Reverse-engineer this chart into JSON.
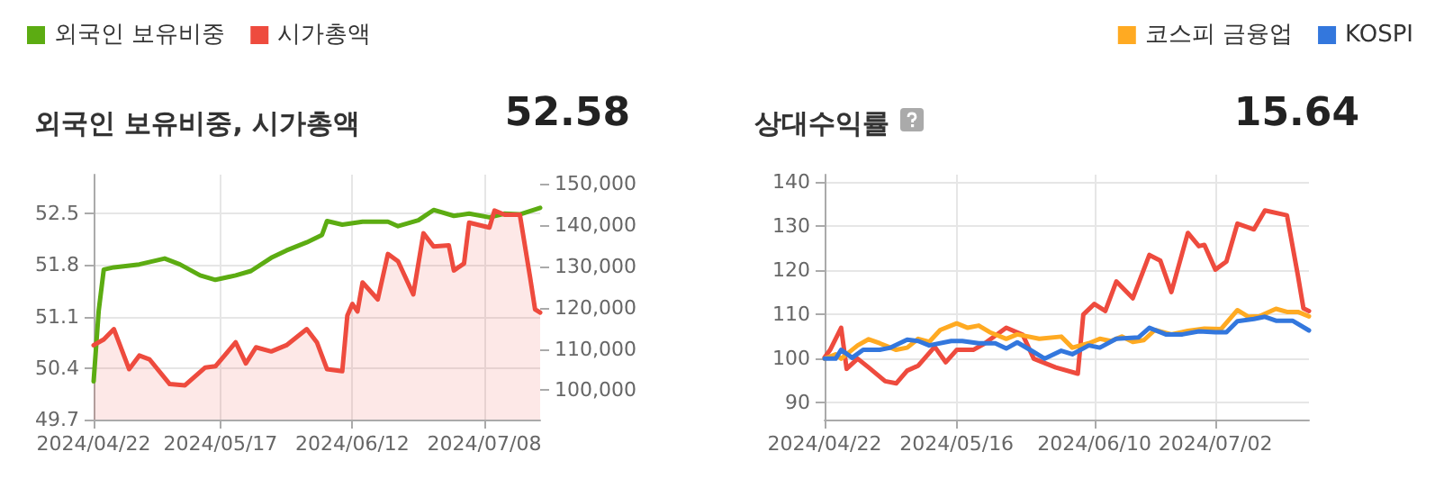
{
  "chart_data": [
    {
      "type": "line",
      "title": "외국인 보유비중, 시가총액",
      "annotations": [
        "52.58"
      ],
      "xlim": [
        "2024-04-22",
        "2024-07-19"
      ],
      "xticks": [
        {
          "value": "2024-04-22",
          "label": "2024/04/22"
        },
        {
          "value": "2024-05-17",
          "label": "2024/05/17"
        },
        {
          "value": "2024-06-12",
          "label": "2024/06/12"
        },
        {
          "value": "2024-07-08",
          "label": "2024/07/08"
        }
      ],
      "ylim": [
        49.7,
        53.03
      ],
      "yticks": [
        49.7,
        50.4,
        51.1,
        51.8,
        52.5
      ],
      "y2lim": [
        92900,
        152200
      ],
      "y2ticks": [
        {
          "value": 100000,
          "label": "100,000"
        },
        {
          "value": 110000,
          "label": "110,000"
        },
        {
          "value": 120000,
          "label": "120,000"
        },
        {
          "value": 130000,
          "label": "130,000"
        },
        {
          "value": 140000,
          "label": "140,000"
        },
        {
          "value": 150000,
          "label": "150,000"
        }
      ],
      "series": [
        {
          "name": "외국인 보유비중",
          "color": "#5cac12",
          "x": [
            "2024-04-22",
            "2024-04-23",
            "2024-04-24",
            "2024-04-26",
            "2024-05-01",
            "2024-05-06",
            "2024-05-09",
            "2024-05-13",
            "2024-05-16",
            "2024-05-20",
            "2024-05-23",
            "2024-05-27",
            "2024-05-30",
            "2024-06-03",
            "2024-06-06",
            "2024-06-07",
            "2024-06-10",
            "2024-06-14",
            "2024-06-19",
            "2024-06-21",
            "2024-06-25",
            "2024-06-28",
            "2024-07-02",
            "2024-07-05",
            "2024-07-09",
            "2024-07-12",
            "2024-07-15",
            "2024-07-19"
          ],
          "values": [
            50.22,
            51.18,
            51.74,
            51.77,
            51.81,
            51.89,
            51.81,
            51.66,
            51.6,
            51.66,
            51.72,
            51.9,
            52.0,
            52.11,
            52.21,
            52.4,
            52.35,
            52.39,
            52.39,
            52.33,
            52.41,
            52.55,
            52.47,
            52.5,
            52.45,
            52.5,
            52.49,
            52.58
          ]
        },
        {
          "name": "시가총액",
          "type": "area",
          "axis": "y2",
          "color": "#ee4b3e",
          "x": [
            "2024-04-22",
            "2024-04-24",
            "2024-04-26",
            "2024-04-29",
            "2024-05-01",
            "2024-05-03",
            "2024-05-07",
            "2024-05-10",
            "2024-05-14",
            "2024-05-16",
            "2024-05-20",
            "2024-05-22",
            "2024-05-24",
            "2024-05-27",
            "2024-05-30",
            "2024-06-03",
            "2024-06-05",
            "2024-06-07",
            "2024-06-10",
            "2024-06-11",
            "2024-06-12",
            "2024-06-13",
            "2024-06-14",
            "2024-06-17",
            "2024-06-19",
            "2024-06-21",
            "2024-06-24",
            "2024-06-26",
            "2024-06-28",
            "2024-07-01",
            "2024-07-02",
            "2024-07-04",
            "2024-07-05",
            "2024-07-09",
            "2024-07-10",
            "2024-07-12",
            "2024-07-15",
            "2024-07-17",
            "2024-07-18",
            "2024-07-19"
          ],
          "values": [
            110900,
            112300,
            114800,
            105100,
            108400,
            107500,
            101500,
            101200,
            105500,
            105800,
            111600,
            106500,
            110400,
            109400,
            110900,
            114800,
            111600,
            105100,
            104600,
            118100,
            120900,
            119100,
            126100,
            122000,
            133000,
            131200,
            123200,
            138000,
            134800,
            135100,
            129000,
            130700,
            140600,
            139400,
            143500,
            142500,
            142500,
            127500,
            119600,
            118800
          ]
        }
      ],
      "grid": true,
      "legend": "top left",
      "marker": "none",
      "line_style": "solid"
    },
    {
      "type": "line",
      "title": "상대수익률",
      "annotations": [
        "15.64"
      ],
      "xlim": [
        "2024-04-22",
        "2024-07-19"
      ],
      "xticks": [
        {
          "value": "2024-04-22",
          "label": "2024/04/22"
        },
        {
          "value": "2024-05-16",
          "label": "2024/05/16"
        },
        {
          "value": "2024-06-10",
          "label": "2024/06/10"
        },
        {
          "value": "2024-07-02",
          "label": "2024/07/02"
        }
      ],
      "ylim": [
        86.2,
        141.7
      ],
      "yticks": [
        90,
        100,
        110,
        120,
        130,
        140
      ],
      "series": [
        {
          "color": "#ee4b3e",
          "x": [
            "2024-04-22",
            "2024-04-23",
            "2024-04-25",
            "2024-04-26",
            "2024-04-28",
            "2024-04-30",
            "2024-05-03",
            "2024-05-05",
            "2024-05-07",
            "2024-05-09",
            "2024-05-12",
            "2024-05-14",
            "2024-05-16",
            "2024-05-19",
            "2024-05-21",
            "2024-05-25",
            "2024-05-28",
            "2024-05-30",
            "2024-06-03",
            "2024-06-07",
            "2024-06-08",
            "2024-06-10",
            "2024-06-12",
            "2024-06-14",
            "2024-06-17",
            "2024-06-20",
            "2024-06-22",
            "2024-06-24",
            "2024-06-27",
            "2024-06-29",
            "2024-06-30",
            "2024-07-02",
            "2024-07-04",
            "2024-07-06",
            "2024-07-09",
            "2024-07-11",
            "2024-07-15",
            "2024-07-17",
            "2024-07-18",
            "2024-07-19"
          ],
          "values": [
            100.3,
            102,
            107,
            97.7,
            100,
            98,
            94.9,
            94.4,
            97.3,
            98.4,
            102.7,
            99.2,
            102,
            102,
            103.4,
            107,
            105.4,
            100,
            98,
            96.6,
            110,
            112.4,
            110.8,
            117.5,
            113.7,
            123.5,
            122.2,
            115.1,
            128.5,
            125.5,
            125.8,
            120.2,
            122,
            130.6,
            129.3,
            133.6,
            132.5,
            118.8,
            111.4,
            110.8
          ]
        },
        {
          "name": "코스피 금융업",
          "color": "#ffaa22",
          "x": [
            "2024-04-22",
            "2024-04-24",
            "2024-04-25",
            "2024-04-28",
            "2024-04-30",
            "2024-05-02",
            "2024-05-05",
            "2024-05-07",
            "2024-05-09",
            "2024-05-11",
            "2024-05-13",
            "2024-05-16",
            "2024-05-18",
            "2024-05-20",
            "2024-05-22",
            "2024-05-25",
            "2024-05-27",
            "2024-05-31",
            "2024-06-04",
            "2024-06-06",
            "2024-06-09",
            "2024-06-11",
            "2024-06-13",
            "2024-06-15",
            "2024-06-17",
            "2024-06-19",
            "2024-06-21",
            "2024-06-24",
            "2024-06-27",
            "2024-06-30",
            "2024-07-03",
            "2024-07-06",
            "2024-07-08",
            "2024-07-10",
            "2024-07-13",
            "2024-07-15",
            "2024-07-17",
            "2024-07-19"
          ],
          "values": [
            100,
            101,
            100,
            103,
            104.4,
            103.5,
            102,
            102.5,
            104.5,
            103.8,
            106.5,
            108,
            107,
            107.5,
            106,
            104.5,
            105.5,
            104.5,
            105,
            102.5,
            103.5,
            104.5,
            104,
            105,
            103.8,
            104.2,
            106.5,
            105.5,
            106.3,
            106.8,
            106.7,
            111,
            109.5,
            109.6,
            111.3,
            110.6,
            110.6,
            109.6
          ]
        },
        {
          "name": "KOSPI",
          "color": "#3377dd",
          "x": [
            "2024-04-22",
            "2024-04-24",
            "2024-04-25",
            "2024-04-27",
            "2024-04-29",
            "2024-05-02",
            "2024-05-04",
            "2024-05-07",
            "2024-05-09",
            "2024-05-11",
            "2024-05-15",
            "2024-05-17",
            "2024-05-20",
            "2024-05-23",
            "2024-05-25",
            "2024-05-27",
            "2024-05-30",
            "2024-06-01",
            "2024-06-04",
            "2024-06-06",
            "2024-06-09",
            "2024-06-11",
            "2024-06-14",
            "2024-06-18",
            "2024-06-20",
            "2024-06-23",
            "2024-06-26",
            "2024-06-29",
            "2024-07-02",
            "2024-07-04",
            "2024-07-06",
            "2024-07-09",
            "2024-07-11",
            "2024-07-13",
            "2024-07-16",
            "2024-07-19"
          ],
          "values": [
            100,
            100,
            102,
            100.2,
            102,
            102,
            102.5,
            104.3,
            104,
            103,
            104,
            104,
            103.5,
            103.5,
            102.3,
            103.7,
            101.5,
            100,
            101.8,
            101,
            103,
            102.5,
            104.5,
            104.8,
            107,
            105.5,
            105.5,
            106.2,
            106,
            106,
            108.5,
            109,
            109.5,
            108.6,
            108.6,
            106.4
          ]
        }
      ],
      "grid": true,
      "legend": "top right",
      "marker": "none",
      "line_style": "solid"
    }
  ]
}
